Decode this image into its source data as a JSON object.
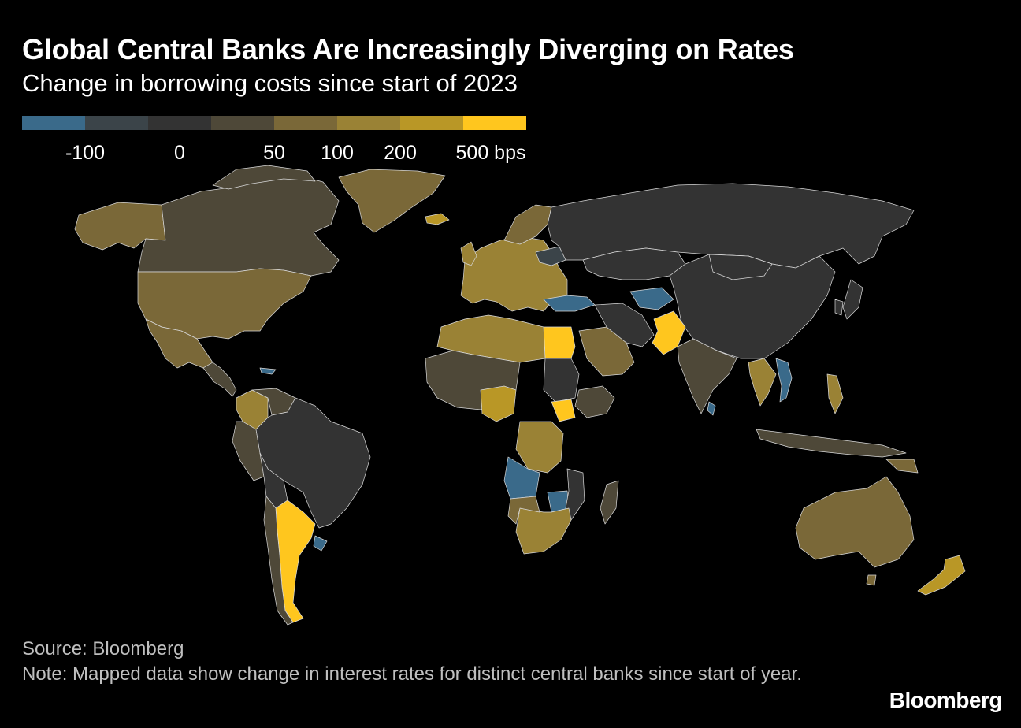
{
  "title": "Global Central Banks Are Increasingly Diverging on Rates",
  "subtitle": "Change in borrowing costs since start of 2023",
  "legend": {
    "bins": [
      {
        "color": "#3a6a8a"
      },
      {
        "color": "#3b4449"
      },
      {
        "color": "#333333"
      },
      {
        "color": "#4e4838"
      },
      {
        "color": "#7a6838"
      },
      {
        "color": "#9a8235"
      },
      {
        "color": "#b99726"
      },
      {
        "color": "#ffc61e"
      }
    ],
    "labels": [
      "-100",
      "0",
      "50",
      "100",
      "200",
      "500 bps"
    ]
  },
  "map": {
    "regions": [
      {
        "name": "Canada",
        "color_bin": "25"
      },
      {
        "name": "United States",
        "color_bin": "50"
      },
      {
        "name": "Mexico",
        "color_bin": "50"
      },
      {
        "name": "Brazil",
        "color_bin": "0"
      },
      {
        "name": "Argentina",
        "color_bin": "500"
      },
      {
        "name": "Colombia",
        "color_bin": "100"
      },
      {
        "name": "Greenland",
        "color_bin": "50"
      },
      {
        "name": "Alaska",
        "color_bin": "50"
      },
      {
        "name": "Russia",
        "color_bin": "0"
      },
      {
        "name": "China",
        "color_bin": "0"
      },
      {
        "name": "India",
        "color_bin": "25"
      },
      {
        "name": "Pakistan",
        "color_bin": "500"
      },
      {
        "name": "Kazakhstan",
        "color_bin": "0"
      },
      {
        "name": "Turkey",
        "color_bin": "-100"
      },
      {
        "name": "Egypt",
        "color_bin": "500"
      },
      {
        "name": "Saudi Arabia",
        "color_bin": "50"
      },
      {
        "name": "Nigeria",
        "color_bin": "200"
      },
      {
        "name": "Angola",
        "color_bin": "-100"
      },
      {
        "name": "DR Congo",
        "color_bin": "100"
      },
      {
        "name": "South Africa",
        "color_bin": "100"
      },
      {
        "name": "Australia",
        "color_bin": "50"
      },
      {
        "name": "New Zealand",
        "color_bin": "200"
      },
      {
        "name": "Vietnam",
        "color_bin": "-100"
      },
      {
        "name": "Europe",
        "color_bin": "100"
      },
      {
        "name": "Iceland",
        "color_bin": "200"
      }
    ]
  },
  "source": "Source: Bloomberg",
  "note": "Note: Mapped data show change in interest rates for distinct central banks since start of year.",
  "logo": "Bloomberg"
}
